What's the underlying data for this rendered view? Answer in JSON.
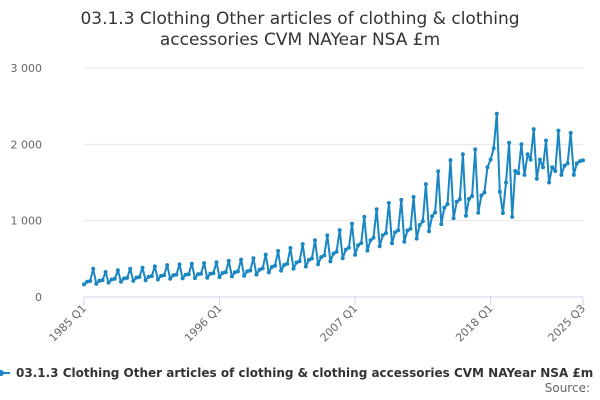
{
  "colors": {
    "series": "#1a86c2",
    "grid": "#e6e6e6",
    "axis": "#ccd6eb",
    "text": "#333333",
    "muted": "#666666"
  },
  "chart_data": {
    "type": "line",
    "title_lines": [
      "03.1.3 Clothing Other articles of clothing & clothing",
      "accessories CVM NAYear NSA £m"
    ],
    "xlabel": "",
    "ylabel": "",
    "ylim": [
      0,
      3000
    ],
    "y_ticks": [
      0,
      1000,
      2000,
      3000
    ],
    "y_tick_labels": [
      "0",
      "1 000",
      "2 000",
      "3 000"
    ],
    "x_ticks": [
      {
        "label": "1985 Q1",
        "index": 0
      },
      {
        "label": "1996 Q1",
        "index": 44
      },
      {
        "label": "2007 Q1",
        "index": 88
      },
      {
        "label": "2018 Q1",
        "index": 132
      },
      {
        "label": "2025 Q3",
        "index": 162
      }
    ],
    "x_range": [
      0,
      162
    ],
    "grid": true,
    "legend_position": "bottom",
    "source_label": "Source:",
    "series": [
      {
        "name": "03.1.3 Clothing Other articles of clothing & clothing accessories CVM NAYear NSA £m",
        "base": [
          190,
          210,
          225,
          240,
          250,
          260,
          270,
          280,
          290,
          295,
          300,
          305,
          310,
          320,
          330,
          340,
          350,
          380,
          410,
          430,
          460,
          490,
          520,
          560,
          600,
          650,
          700,
          760,
          820,
          860,
          880,
          900,
          1000,
          1100,
          1200,
          1270,
          1300,
          1340,
          1380,
          1420,
          1500,
          1600,
          1500,
          1600,
          1700,
          1750,
          1750,
          1780
        ],
        "seasonal": [
          0.82,
          0.98,
          1.0,
          1.45
        ],
        "overrides": {
          "0": 165,
          "1": 200,
          "2": 210,
          "3": 370,
          "131": 1700,
          "132": 1800,
          "133": 1950,
          "134": 2400,
          "135": 1380,
          "136": 1100,
          "137": 1500,
          "138": 2020,
          "139": 1050,
          "140": 1650,
          "141": 1620,
          "142": 2000,
          "143": 1600,
          "144": 1870,
          "145": 1800,
          "146": 2200,
          "147": 1550,
          "148": 1800,
          "149": 1700,
          "150": 2050,
          "151": 1500,
          "152": 1700,
          "153": 1650,
          "154": 2180,
          "155": 1600,
          "156": 1720,
          "157": 1750,
          "158": 2150,
          "159": 1600,
          "160": 1750,
          "161": 1780,
          "162": 1790
        }
      }
    ]
  }
}
